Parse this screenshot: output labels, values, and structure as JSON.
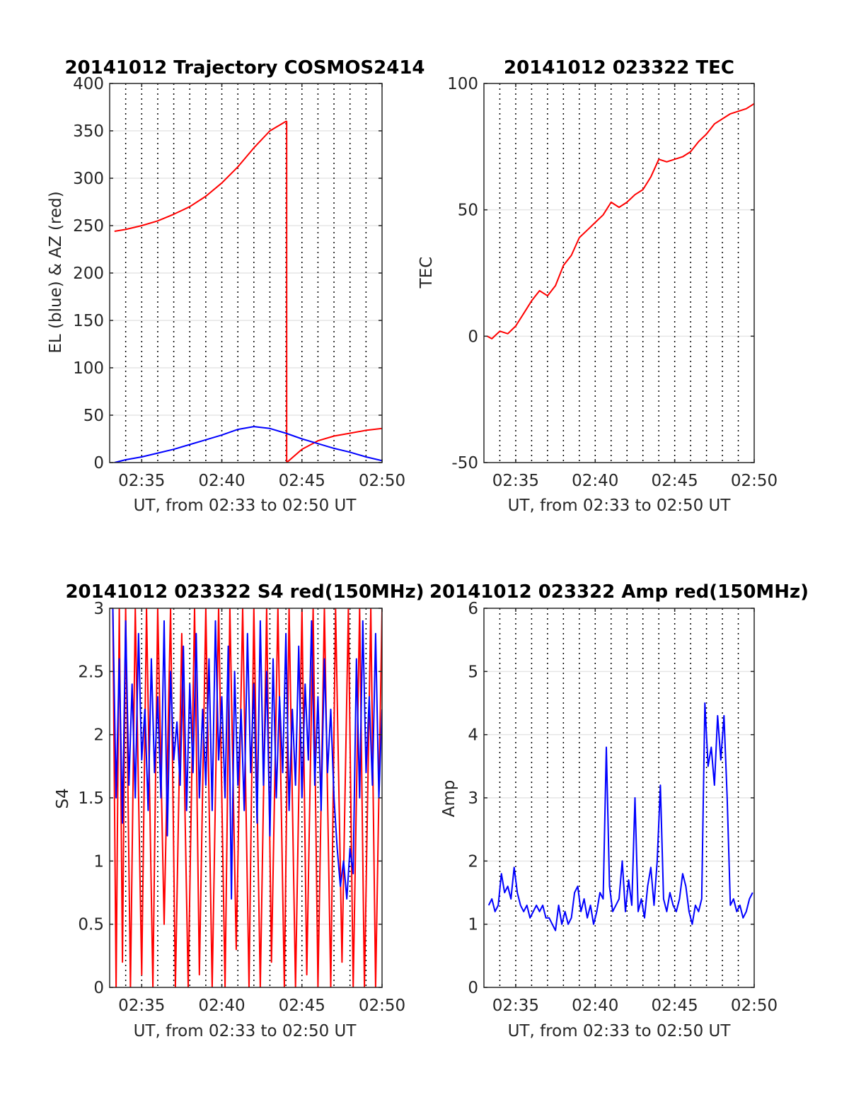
{
  "figure": {
    "background": "#ffffff"
  },
  "panels": [
    {
      "id": "trajectory",
      "title": "20141012 Trajectory COSMOS2414",
      "xlabel": "UT, from 02:33 to 02:50 UT",
      "ylabel": "EL (blue) & AZ (red)",
      "xlim_minutes": [
        33,
        50
      ],
      "ylim": [
        0,
        400
      ],
      "yticks": [
        0,
        50,
        100,
        150,
        200,
        250,
        300,
        350,
        400
      ],
      "ytick_labels": [
        "0",
        "50",
        "100",
        "150",
        "200",
        "250",
        "300",
        "350",
        "400"
      ],
      "xticks_minutes": [
        35,
        40,
        45,
        50
      ],
      "xtick_labels": [
        "02:35",
        "02:40",
        "02:45",
        "02:50"
      ]
    },
    {
      "id": "tec",
      "title": "20141012 023322 TEC",
      "xlabel": "UT, from 02:33 to 02:50 UT",
      "ylabel": "TEC",
      "xlim_minutes": [
        33,
        50
      ],
      "ylim": [
        -50,
        100
      ],
      "yticks": [
        -50,
        0,
        50,
        100
      ],
      "ytick_labels": [
        "-50",
        "0",
        "50",
        "100"
      ],
      "xticks_minutes": [
        35,
        40,
        45,
        50
      ],
      "xtick_labels": [
        "02:35",
        "02:40",
        "02:45",
        "02:50"
      ]
    },
    {
      "id": "s4",
      "title": "20141012 023322 S4 red(150MHz)",
      "xlabel": "UT, from 02:33 to 02:50 UT",
      "ylabel": "S4",
      "xlim_minutes": [
        33,
        50
      ],
      "ylim": [
        0,
        3
      ],
      "yticks": [
        0,
        0.5,
        1,
        1.5,
        2,
        2.5,
        3
      ],
      "ytick_labels": [
        "0",
        "0.5",
        "1",
        "1.5",
        "2",
        "2.5",
        "3"
      ],
      "xticks_minutes": [
        35,
        40,
        45,
        50
      ],
      "xtick_labels": [
        "02:35",
        "02:40",
        "02:45",
        "02:50"
      ]
    },
    {
      "id": "amp",
      "title": "20141012 023322 Amp red(150MHz)",
      "xlabel": "UT, from 02:33 to 02:50 UT",
      "ylabel": "Amp",
      "xlim_minutes": [
        33,
        50
      ],
      "ylim": [
        0,
        6
      ],
      "yticks": [
        0,
        1,
        2,
        3,
        4,
        5,
        6
      ],
      "ytick_labels": [
        "0",
        "1",
        "2",
        "3",
        "4",
        "5",
        "6"
      ],
      "xticks_minutes": [
        35,
        40,
        45,
        50
      ],
      "xtick_labels": [
        "02:35",
        "02:40",
        "02:45",
        "02:50"
      ]
    }
  ],
  "chart_data": [
    {
      "type": "line",
      "title": "20141012 Trajectory COSMOS2414",
      "xlabel": "UT, from 02:33 to 02:50 UT",
      "ylabel": "EL (blue) & AZ (red)",
      "xlim_minutes": [
        33,
        50
      ],
      "ylim": [
        0,
        400
      ],
      "grid": true,
      "dotted_vlines_minutes": [
        34,
        35,
        36,
        37,
        38,
        39,
        40,
        41,
        42,
        43,
        44,
        45,
        46,
        47,
        48,
        49
      ],
      "series": [
        {
          "color": "#ff0000",
          "x": [
            33.3,
            34,
            35,
            36,
            37,
            38,
            39,
            40,
            41,
            42,
            43,
            44,
            44.05,
            44.05,
            45,
            46,
            47,
            48,
            49,
            50
          ],
          "y": [
            244,
            246,
            250,
            255,
            262,
            270,
            281,
            295,
            312,
            332,
            350,
            360,
            360,
            0,
            14,
            23,
            28,
            31,
            34,
            36
          ]
        },
        {
          "color": "#0000ff",
          "x": [
            33.3,
            34,
            35,
            36,
            37,
            38,
            39,
            40,
            41,
            42,
            43,
            44,
            45,
            46,
            47,
            48,
            49,
            50
          ],
          "y": [
            0,
            3,
            6,
            10,
            14,
            19,
            24,
            29,
            35,
            38,
            36,
            31,
            25,
            20,
            15,
            11,
            6,
            2
          ]
        }
      ]
    },
    {
      "type": "line",
      "title": "20141012 023322 TEC",
      "xlabel": "UT, from 02:33 to 02:50 UT",
      "ylabel": "TEC",
      "xlim_minutes": [
        33,
        50
      ],
      "ylim": [
        -50,
        100
      ],
      "grid": true,
      "dotted_vlines_minutes": [
        34,
        35,
        36,
        37,
        38,
        39,
        40,
        41,
        42,
        43,
        44,
        45,
        46,
        47,
        48,
        49
      ],
      "series": [
        {
          "color": "#ff0000",
          "x": [
            33.2,
            33.5,
            34,
            34.5,
            35,
            35.5,
            36,
            36.5,
            37,
            37.5,
            38,
            38.5,
            39,
            39.5,
            40,
            40.5,
            41,
            41.5,
            42,
            42.5,
            43,
            43.5,
            44,
            44.5,
            45,
            45.5,
            46,
            46.5,
            47,
            47.5,
            48,
            48.5,
            49,
            49.5,
            50
          ],
          "y": [
            0,
            -1,
            2,
            1,
            4,
            9,
            14,
            18,
            16,
            20,
            28,
            32,
            39,
            42,
            45,
            48,
            53,
            51,
            53,
            56,
            58,
            63,
            70,
            69,
            70,
            71,
            73,
            77,
            80,
            84,
            86,
            88,
            89,
            90,
            92
          ]
        }
      ]
    },
    {
      "type": "line",
      "title": "20141012 023322 S4 red(150MHz)",
      "xlabel": "UT, from 02:33 to 02:50 UT",
      "ylabel": "S4",
      "xlim_minutes": [
        33,
        50
      ],
      "ylim": [
        0,
        3
      ],
      "grid": true,
      "dotted_vlines_minutes": [
        34,
        35,
        36,
        37,
        38,
        39,
        40,
        41,
        42,
        43,
        44,
        45,
        46,
        47,
        48,
        49
      ],
      "series": [
        {
          "color": "#ff0000",
          "x": [
            33.2,
            33.4,
            33.6,
            33.8,
            34.0,
            34.3,
            34.6,
            35.0,
            35.3,
            35.7,
            36.0,
            36.4,
            36.8,
            37.1,
            37.5,
            37.9,
            38.3,
            38.6,
            39.0,
            39.4,
            39.8,
            40.2,
            40.5,
            40.9,
            41.3,
            41.7,
            42.0,
            42.4,
            42.8,
            43.1,
            43.5,
            43.9,
            44.2,
            44.6,
            45.0,
            45.3,
            45.7,
            46.0,
            46.4,
            46.8,
            47.1,
            47.5,
            47.9,
            48.2,
            48.6,
            48.9,
            49.3,
            49.6,
            50.0
          ],
          "y": [
            3,
            0,
            3,
            0.2,
            3,
            0,
            3,
            0.1,
            3,
            0,
            3,
            0.5,
            3,
            0,
            2.8,
            0,
            3,
            0.1,
            3,
            0,
            3,
            0,
            3,
            0.3,
            3,
            0,
            3,
            0,
            3,
            0.2,
            3,
            0,
            3,
            0,
            3,
            0.1,
            3,
            0,
            3,
            0,
            3,
            0.2,
            3,
            0,
            3,
            0,
            3,
            0,
            3
          ]
        },
        {
          "color": "#0000ff",
          "x": [
            33.2,
            33.4,
            33.6,
            33.8,
            34.0,
            34.2,
            34.4,
            34.6,
            34.8,
            35.0,
            35.2,
            35.4,
            35.6,
            35.8,
            36.0,
            36.2,
            36.4,
            36.6,
            36.8,
            37.0,
            37.2,
            37.4,
            37.6,
            37.8,
            38.0,
            38.2,
            38.4,
            38.6,
            38.8,
            39.0,
            39.2,
            39.4,
            39.6,
            39.8,
            40.0,
            40.2,
            40.4,
            40.6,
            40.8,
            41.0,
            41.2,
            41.4,
            41.6,
            41.8,
            42.0,
            42.2,
            42.4,
            42.6,
            42.8,
            43.0,
            43.2,
            43.4,
            43.6,
            43.8,
            44.0,
            44.2,
            44.4,
            44.6,
            44.8,
            45.0,
            45.2,
            45.4,
            45.6,
            45.8,
            46.0,
            46.2,
            46.4,
            46.6,
            46.8,
            47.0,
            47.2,
            47.4,
            47.6,
            47.8,
            48.0,
            48.2,
            48.4,
            48.6,
            48.8,
            49.0,
            49.2,
            49.4,
            49.6,
            49.8,
            50.0
          ],
          "y": [
            3,
            1.5,
            2.6,
            1.3,
            2.9,
            1.6,
            2.4,
            1.5,
            2.8,
            1.8,
            2.2,
            1.4,
            2.6,
            1.7,
            2.3,
            1.5,
            2.9,
            1.2,
            2.5,
            1.8,
            2.1,
            1.6,
            2.7,
            1.4,
            2.4,
            1.7,
            2.8,
            1.5,
            2.2,
            1.6,
            2.6,
            1.4,
            2.9,
            1.8,
            2.3,
            1.5,
            2.7,
            0.7,
            2.5,
            1.6,
            2.2,
            1.4,
            2.8,
            1.7,
            2.4,
            1.3,
            2.9,
            1.6,
            2.5,
            1.2,
            2.6,
            1.5,
            2.3,
            1.7,
            2.8,
            1.4,
            2.2,
            1.6,
            2.7,
            1.5,
            2.4,
            1.8,
            2.9,
            1.6,
            2.3,
            1.4,
            2.6,
            1.7,
            2.2,
            1.5,
            1.1,
            0.8,
            1.0,
            0.7,
            1.1,
            0.9,
            2.6,
            1.5,
            2.9,
            1.7,
            2.3,
            1.6,
            2.8,
            1.5,
            2.2
          ]
        }
      ]
    },
    {
      "type": "line",
      "title": "20141012 023322 Amp red(150MHz)",
      "xlabel": "UT, from 02:33 to 02:50 UT",
      "ylabel": "Amp",
      "xlim_minutes": [
        33,
        50
      ],
      "ylim": [
        0,
        6
      ],
      "grid": true,
      "dotted_vlines_minutes": [
        34,
        35,
        36,
        37,
        38,
        39,
        40,
        41,
        42,
        43,
        44,
        45,
        46,
        47,
        48,
        49
      ],
      "series": [
        {
          "color": "#0000ff",
          "x": [
            33.3,
            33.5,
            33.7,
            33.9,
            34.1,
            34.3,
            34.5,
            34.7,
            34.9,
            35.1,
            35.3,
            35.5,
            35.7,
            35.9,
            36.1,
            36.3,
            36.5,
            36.7,
            36.9,
            37.1,
            37.3,
            37.5,
            37.7,
            37.9,
            38.1,
            38.3,
            38.5,
            38.7,
            38.9,
            39.1,
            39.3,
            39.5,
            39.7,
            39.9,
            40.1,
            40.3,
            40.5,
            40.7,
            40.9,
            41.1,
            41.3,
            41.5,
            41.7,
            41.9,
            42.1,
            42.3,
            42.5,
            42.7,
            42.9,
            43.1,
            43.3,
            43.5,
            43.7,
            43.9,
            44.1,
            44.3,
            44.5,
            44.7,
            44.9,
            45.1,
            45.3,
            45.5,
            45.7,
            45.9,
            46.1,
            46.3,
            46.5,
            46.7,
            46.9,
            47.1,
            47.3,
            47.5,
            47.7,
            47.9,
            48.1,
            48.3,
            48.5,
            48.7,
            48.9,
            49.1,
            49.3,
            49.5,
            49.7,
            49.9
          ],
          "y": [
            1.3,
            1.4,
            1.2,
            1.3,
            1.8,
            1.5,
            1.6,
            1.4,
            1.9,
            1.5,
            1.3,
            1.2,
            1.3,
            1.1,
            1.2,
            1.3,
            1.2,
            1.3,
            1.1,
            1.1,
            1.0,
            0.9,
            1.3,
            1.0,
            1.2,
            1.0,
            1.1,
            1.5,
            1.6,
            1.2,
            1.4,
            1.1,
            1.3,
            1.0,
            1.2,
            1.5,
            1.4,
            3.8,
            1.6,
            1.2,
            1.3,
            1.4,
            2.0,
            1.2,
            1.7,
            1.3,
            3.0,
            1.2,
            1.4,
            1.1,
            1.6,
            1.9,
            1.3,
            2.0,
            3.2,
            1.4,
            1.2,
            1.5,
            1.3,
            1.2,
            1.4,
            1.8,
            1.6,
            1.2,
            1.0,
            1.3,
            1.2,
            1.4,
            4.5,
            3.5,
            3.8,
            3.2,
            4.3,
            3.6,
            4.3,
            3.0,
            1.3,
            1.4,
            1.2,
            1.3,
            1.1,
            1.2,
            1.4,
            1.5
          ]
        }
      ]
    }
  ]
}
